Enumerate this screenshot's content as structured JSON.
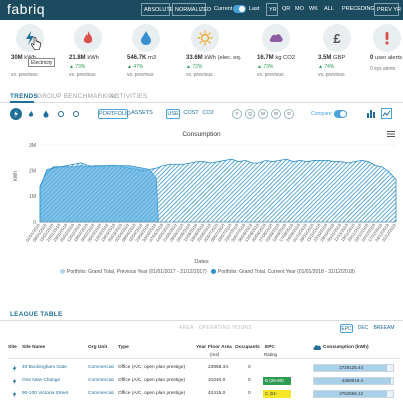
{
  "app": {
    "logo": "fabriq",
    "modes": [
      "ABSOLUTE",
      "NORMALIZED"
    ],
    "toggle_left": "Current",
    "toggle_right": "Last",
    "periods": [
      "YR",
      "QR",
      "MO",
      "WK",
      "ALL"
    ],
    "preceding": "PRECEDING",
    "prev_yr": "PREV YR"
  },
  "kpis": [
    {
      "icon": "electricity-bolt-icon",
      "color": "#1f6f98",
      "value": "30M",
      "unit": "kWh",
      "pct": "",
      "vs": "vs. previous"
    },
    {
      "icon": "gas-flame-icon",
      "color": "#d9534f",
      "value": "21.8M",
      "unit": "kWh",
      "pct": "▲ 73%",
      "vs": "vs. previous"
    },
    {
      "icon": "water-drop-icon",
      "color": "#3a8fd0",
      "value": "546.7K",
      "unit": "m3",
      "pct": "▲ 47%",
      "vs": "vs. previous"
    },
    {
      "icon": "sun-energy-icon",
      "color": "#f0a830",
      "value": "33.6M",
      "unit": "kWh (elec. eq.",
      "pct": "▲ 72%",
      "vs": "vs. previous"
    },
    {
      "icon": "cloud-co2-icon",
      "color": "#8e5ea2",
      "value": "16.7M",
      "unit": "kg CO2",
      "pct": "▲ 73%",
      "vs": "vs. previous"
    },
    {
      "icon": "pound-cost-icon",
      "color": "#555555",
      "value": "3.5M",
      "unit": "GBP",
      "pct": "▲ 74%",
      "vs": "vs. previous"
    },
    {
      "icon": "alert-icon",
      "color": "#d9534f",
      "value": "0",
      "unit": "user alerts",
      "pct": "",
      "vs": "0 sys alerts"
    }
  ],
  "tooltip": "Electricity",
  "section_tabs": [
    "TRENDS",
    "GROUP BENCHMARKING",
    "ACTIVITIES"
  ],
  "filters": {
    "portfolio": "PORTFOLIO",
    "assets": "ASSETS",
    "use": "USE",
    "cost": "COST",
    "co2": "CO2",
    "granularity": [
      "Y",
      "Q",
      "M",
      "W",
      "D"
    ],
    "compare": "Compare"
  },
  "chart_data": {
    "type": "area",
    "title": "Consumption",
    "xlabel": "Dates",
    "ylabel": "kWh",
    "ylim": [
      0,
      3000000
    ],
    "yticks": [
      "0",
      "1M",
      "2M",
      "3M"
    ],
    "grid": true,
    "legend_position": "bottom",
    "x": [
      "01/01/2018",
      "08/01/2018",
      "15/01/2018",
      "22/01/2018",
      "29/01/2018",
      "05/02/2018",
      "12/02/2018",
      "19/02/2018",
      "26/02/2018",
      "05/03/2018",
      "12/03/2018",
      "19/03/2018",
      "26/03/2018",
      "02/04/2018",
      "09/04/2018",
      "16/04/2018",
      "23/04/2018",
      "30/04/2018",
      "07/05/2018",
      "14/05/2018",
      "21/05/2018",
      "28/05/2018",
      "04/06/2018",
      "11/06/2018",
      "18/06/2018",
      "25/06/2018",
      "02/07/2018",
      "09/07/2018",
      "16/07/2018",
      "23/07/2018",
      "30/07/2018",
      "06/08/2018",
      "13/08/2018",
      "20/08/2018",
      "27/08/2018",
      "03/09/2018",
      "10/09/2018",
      "17/09/2018",
      "24/09/2018",
      "01/10/2018",
      "08/10/2018",
      "15/10/2018",
      "22/10/2018",
      "29/10/2018",
      "05/11/2018",
      "12/11/2018",
      "19/11/2018",
      "26/11/2018",
      "03/12/2018",
      "10/12/2018",
      "17/12/2018",
      "24/12/2018",
      "31/12/2018"
    ],
    "series": [
      {
        "name": "Portfolio: Grand Total, Previous Year (01/01/2017 - 31/12/2017)",
        "color": "#2b8fc9",
        "values": [
          1350000,
          2050000,
          2100000,
          2150000,
          2150000,
          2150000,
          2200000,
          2150000,
          2200000,
          2200000,
          2200000,
          2200000,
          2200000,
          2200000,
          2150000,
          2100000,
          2050000,
          1700000,
          0,
          0,
          0,
          0,
          0,
          0,
          0,
          0,
          0,
          0,
          0,
          0,
          0,
          0,
          0,
          0,
          0,
          0,
          0,
          0,
          0,
          0,
          0,
          0,
          0,
          0,
          0,
          0,
          0,
          0,
          0,
          0,
          0,
          0,
          0
        ]
      },
      {
        "name": "Portfolio: Grand Total, Current Year (01/01/2018 - 31/12/2018)",
        "color": "#2b8fc9",
        "values": [
          1400000,
          1950000,
          2150000,
          2150000,
          2200000,
          2250000,
          2300000,
          2200000,
          2150000,
          2150000,
          2200000,
          2200000,
          2150000,
          2100000,
          2050000,
          2000000,
          2050000,
          2100000,
          2200000,
          2250000,
          2250000,
          2250000,
          2300000,
          2350000,
          2350000,
          2300000,
          2350000,
          2400000,
          2450000,
          2350000,
          2400000,
          2300000,
          2300000,
          2400000,
          2350000,
          2400000,
          2450000,
          2350000,
          2400000,
          2350000,
          2400000,
          2400000,
          2400000,
          2350000,
          2350000,
          2300000,
          2350000,
          2400000,
          2350000,
          2200000,
          2150000,
          1950000,
          1650000
        ]
      }
    ]
  },
  "league": {
    "title": "LEAGUE TABLE",
    "sub": "AREA · OPERATING HOURS",
    "ratings": [
      "EPC",
      "DEC",
      "BREEAM"
    ],
    "headers": {
      "site": "Site",
      "site_name": "Site Name",
      "org_unit": "Org Unit",
      "type": "Type",
      "year": "Year",
      "floor_area": "Floor Area",
      "floor_area_unit": "(m2)",
      "occupants": "Occupants",
      "epc": "EPC",
      "epc_sub": "Rating",
      "consumption": "Consumption (kWh)"
    },
    "rows": [
      {
        "name": "40 Buckingham Gate",
        "org": "Commercial",
        "type": "Office (A/C, open plan prestige)",
        "area": "23968.34",
        "occ": "0",
        "epc": "",
        "epc_color": "",
        "cons": "3729125.44",
        "cons_pct": 0.92
      },
      {
        "name": "One New Change",
        "org": "Commercial",
        "type": "Office (A/C, open plan prestige)",
        "area": "31040.0",
        "occ": "0",
        "epc": "B (26-50)",
        "epc_color": "#2e9a52",
        "cons": "4369819.4",
        "cons_pct": 0.97
      },
      {
        "name": "90-100 Victoria Street",
        "org": "Commercial",
        "type": "Office (A/C, open plan prestige)",
        "area": "42415.0",
        "occ": "0",
        "epc": "C (51-",
        "epc_color": "#f5e62a",
        "cons": "3752569.12",
        "cons_pct": 0.93
      }
    ]
  }
}
